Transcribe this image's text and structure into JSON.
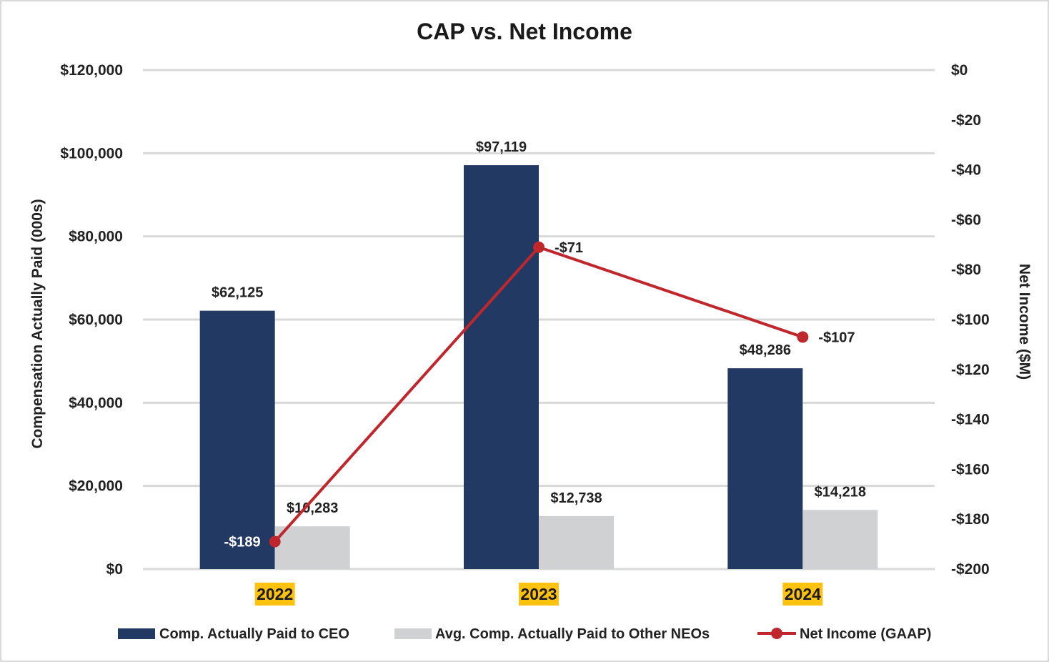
{
  "chart_data": {
    "type": "bar",
    "title": "CAP vs. Net Income",
    "categories": [
      "2022",
      "2023",
      "2024"
    ],
    "series": [
      {
        "name": "Comp. Actually Paid to CEO",
        "kind": "bar",
        "axis": "left",
        "color": "#213963",
        "values": [
          62125,
          97119,
          48286
        ],
        "labels": [
          "$62,125",
          "$97,119",
          "$48,286"
        ]
      },
      {
        "name": "Avg. Comp. Actually Paid to Other NEOs",
        "kind": "bar",
        "axis": "left",
        "color": "#d0d1d3",
        "values": [
          10283,
          12738,
          14218
        ],
        "labels": [
          "$10,283",
          "$12,738",
          "$14,218"
        ]
      },
      {
        "name": "Net Income (GAAP)",
        "kind": "line",
        "axis": "right",
        "color": "#c0272d",
        "values": [
          -189,
          -71,
          -107
        ],
        "labels": [
          "-$189",
          "-$71",
          "-$107"
        ]
      }
    ],
    "ylabel": "Compensation Actually Paid (000s)",
    "ylim": [
      0,
      120000
    ],
    "yticks": [
      0,
      20000,
      40000,
      60000,
      80000,
      100000,
      120000
    ],
    "ytick_labels": [
      "$0",
      "$20,000",
      "$40,000",
      "$60,000",
      "$80,000",
      "$100,000",
      "$120,000"
    ],
    "y2label": "Net Income ($M)",
    "y2lim": [
      -200,
      0
    ],
    "y2ticks": [
      -200,
      -180,
      -160,
      -140,
      -120,
      -100,
      -80,
      -60,
      -40,
      -20,
      0
    ],
    "y2tick_labels": [
      "-$200",
      "-$180",
      "-$160",
      "-$140",
      "-$120",
      "-$100",
      "-$80",
      "-$60",
      "-$40",
      "-$20",
      "$0"
    ],
    "category_highlight_color": "#ffc20e",
    "grid": true,
    "legend": "bottom"
  }
}
